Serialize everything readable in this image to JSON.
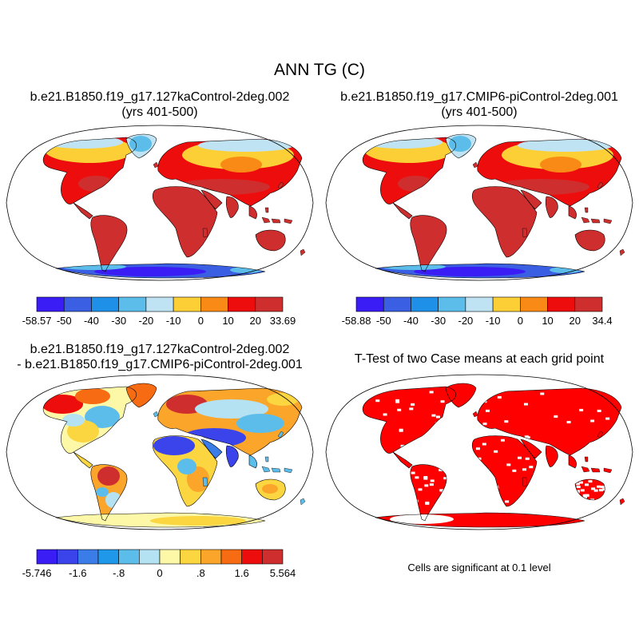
{
  "title": "ANN TG (C)",
  "panels": [
    {
      "line1": "b.e21.B1850.f19_g17.127kaControl-2deg.002",
      "line2": "(yrs 401-500)"
    },
    {
      "line1": "b.e21.B1850.f19_g17.CMIP6-piControl-2deg.001",
      "line2": "(yrs 401-500)"
    },
    {
      "line1": "b.e21.B1850.f19_g17.127kaControl-2deg.002",
      "line2": "- b.e21.B1850.f19_g17.CMIP6-piControl-2deg.001"
    },
    {
      "line1": "T-Test of two Case means at each grid point",
      "line2": ""
    }
  ],
  "colorbars": [
    {
      "colors": [
        "#3a1cf5",
        "#3b5fe3",
        "#1f90e8",
        "#5cbdea",
        "#bfe3f2",
        "#fbcf35",
        "#f98a15",
        "#ee0d0d",
        "#cf2e2e"
      ],
      "labels": [
        "-58.57",
        "-50",
        "-40",
        "-30",
        "-20",
        "-10",
        "0",
        "10",
        "20",
        "33.69"
      ]
    },
    {
      "colors": [
        "#3a1cf5",
        "#3b5fe3",
        "#1f90e8",
        "#5cbdea",
        "#bfe3f2",
        "#fbcf35",
        "#f98a15",
        "#ee0d0d",
        "#cf2e2e"
      ],
      "labels": [
        "-58.88",
        "-50",
        "-40",
        "-30",
        "-20",
        "-10",
        "0",
        "10",
        "20",
        "34.4"
      ]
    },
    {
      "colors": [
        "#3a1cf5",
        "#3b43ea",
        "#3a7de8",
        "#1f98ea",
        "#5cbdea",
        "#b5e2f2",
        "#fdf7a8",
        "#fbd640",
        "#fba52a",
        "#f76b12",
        "#ee0d0d",
        "#cf2e2e"
      ],
      "labels": [
        "-5.746",
        "-1.6",
        "-.8",
        "0",
        ".8",
        "1.6",
        "5.564"
      ]
    }
  ],
  "note": "Cells are significant at 0.1 level"
}
